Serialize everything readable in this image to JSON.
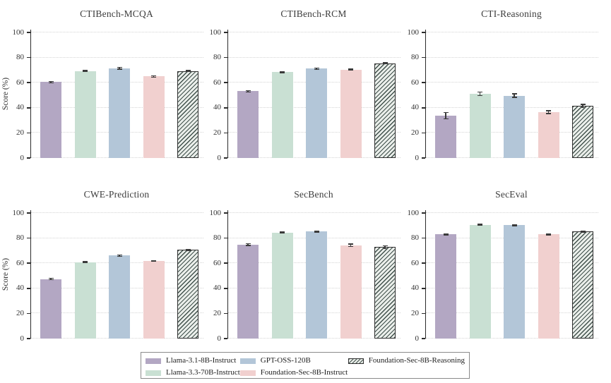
{
  "chart_data": {
    "type": "bar",
    "layout": "2 rows x 3 cols of subplots, shared style",
    "ylabel": "Score (%)",
    "ylim": [
      0,
      102
    ],
    "yticks": [
      0,
      20,
      40,
      60,
      80,
      100
    ],
    "grid": "horizontal dotted gridlines at each ytick",
    "categories": [
      "Llama-3.1-8B-Instruct",
      "Llama-3.3-70B-Instruct",
      "GPT-OSS-120B",
      "Foundation-Sec-8B-Instruct",
      "Foundation-Sec-8B-Reasoning"
    ],
    "series_colors": [
      "#b3a7c3",
      "#c9e0d3",
      "#b3c6d8",
      "#f1d0cf",
      "#eaeeea"
    ],
    "hatched_index": 4,
    "hatch_line_color": "#41514c",
    "error_bar_color": "#3a3a3a",
    "charts": [
      {
        "title": "CTIBench-MCQA",
        "values": [
          60.5,
          69.2,
          71.6,
          65.0,
          69.2
        ],
        "errors": [
          0.6,
          0.4,
          0.7,
          0.5,
          0.4
        ]
      },
      {
        "title": "CTIBench-RCM",
        "values": [
          53.2,
          68.4,
          71.2,
          70.4,
          75.4
        ],
        "errors": [
          0.5,
          0.5,
          0.6,
          0.5,
          0.5
        ]
      },
      {
        "title": "CTI-Reasoning",
        "values": [
          33.7,
          51.0,
          49.7,
          36.5,
          41.4
        ],
        "errors": [
          2.5,
          1.4,
          1.4,
          1.2,
          1.2
        ]
      },
      {
        "title": "CWE-Prediction",
        "values": [
          47.4,
          60.9,
          66.1,
          61.8,
          70.6
        ],
        "errors": [
          0.5,
          0.4,
          0.5,
          0.4,
          0.4
        ]
      },
      {
        "title": "SecBench",
        "values": [
          74.9,
          84.4,
          85.3,
          74.3,
          72.9
        ],
        "errors": [
          0.7,
          0.4,
          0.5,
          1.1,
          1.1
        ]
      },
      {
        "title": "SecEval",
        "values": [
          83.1,
          90.6,
          90.3,
          83.0,
          85.2
        ],
        "errors": [
          0.4,
          0.4,
          0.4,
          0.3,
          0.3
        ]
      }
    ]
  },
  "legend": {
    "items": [
      {
        "label": "Llama-3.1-8B-Instruct",
        "swatch": "solid",
        "color": "#b3a7c3"
      },
      {
        "label": "Llama-3.3-70B-Instruct",
        "swatch": "solid",
        "color": "#c9e0d3"
      },
      {
        "label": "GPT-OSS-120B",
        "swatch": "solid",
        "color": "#b3c6d8"
      },
      {
        "label": "Foundation-Sec-8B-Instruct",
        "swatch": "solid",
        "color": "#f1d0cf"
      },
      {
        "label": "Foundation-Sec-8B-Reasoning",
        "swatch": "hatched",
        "color": "#eaeeea"
      }
    ],
    "columns": [
      [
        0,
        1
      ],
      [
        2,
        3
      ],
      [
        4
      ]
    ]
  }
}
